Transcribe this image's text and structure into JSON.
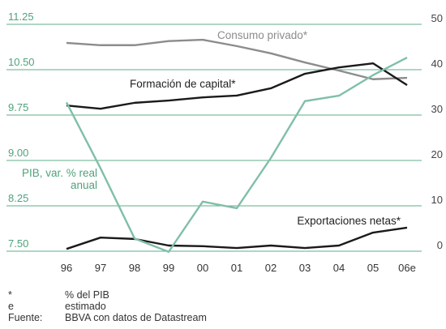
{
  "chart_data": {
    "type": "line",
    "categories": [
      "96",
      "97",
      "98",
      "99",
      "00",
      "01",
      "02",
      "03",
      "04",
      "05",
      "06e"
    ],
    "ylim": [
      7.5,
      11.25
    ],
    "yticks": [
      {
        "value": 7.5,
        "label": "7.50"
      },
      8.25,
      {
        "value": 9,
        "label": "9.00"
      },
      9.75,
      {
        "value": 10.5,
        "label": "10.50"
      },
      11.25
    ],
    "y2lim": [
      0,
      50
    ],
    "y2ticks": [
      0,
      10,
      20,
      30,
      40,
      50
    ],
    "grid": true,
    "series": [
      {
        "name": "Consumo privado*",
        "color": "#8c8c8c",
        "axis": "y2",
        "values": [
          45.9,
          45.4,
          45.4,
          46.3,
          46.6,
          45.2,
          43.6,
          41.6,
          39.8,
          37.9,
          38.2
        ]
      },
      {
        "name": "Formación de capital*",
        "color": "#1a1a1a",
        "axis": "y2",
        "values": [
          32.1,
          31.4,
          32.7,
          33.2,
          33.9,
          34.3,
          35.9,
          39.1,
          40.5,
          41.4,
          36.6
        ]
      },
      {
        "name": "Exportaciones netas*",
        "color": "#1a1a1a",
        "axis": "y2",
        "values": [
          0.5,
          3.0,
          2.7,
          1.25,
          1.1,
          0.7,
          1.25,
          0.7,
          1.25,
          4.1,
          5.2
        ]
      },
      {
        "name": "PIB, var. % real anual",
        "color": "#7fbfa8",
        "values": [
          9.96,
          8.87,
          7.71,
          7.49,
          8.32,
          8.21,
          9.04,
          9.98,
          10.07,
          10.41,
          10.7
        ]
      }
    ],
    "footnotes": [
      [
        "*",
        "% del PIB"
      ],
      [
        "e",
        "estimado"
      ],
      [
        "Fuente:",
        "BBVA con datos de Datastream"
      ]
    ]
  }
}
